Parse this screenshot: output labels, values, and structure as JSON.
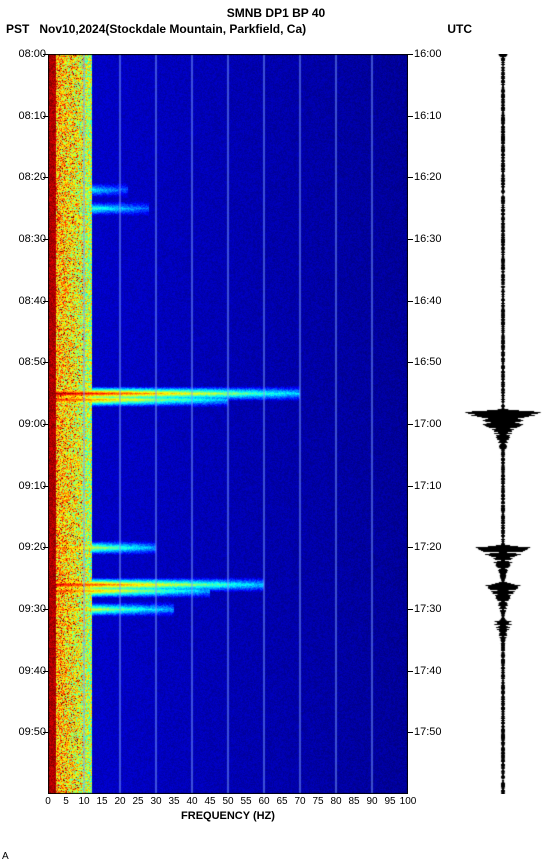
{
  "header": {
    "title": "SMNB DP1 BP 40",
    "tz_left": "PST",
    "date": "Nov10,2024",
    "location": "(Stockdale Mountain, Parkfield, Ca)",
    "tz_right": "UTC"
  },
  "spectrogram": {
    "type": "spectrogram",
    "xlabel": "FREQUENCY (HZ)",
    "xlim": [
      0,
      100
    ],
    "xticks": [
      0,
      5,
      10,
      15,
      20,
      25,
      30,
      35,
      40,
      45,
      50,
      55,
      60,
      65,
      70,
      75,
      80,
      85,
      90,
      95,
      100
    ],
    "left_time_label_prefix": "0",
    "left_ticks": [
      "08:00",
      "08:10",
      "08:20",
      "08:30",
      "08:40",
      "08:50",
      "09:00",
      "09:10",
      "09:20",
      "09:30",
      "09:40",
      "09:50"
    ],
    "right_ticks": [
      "16:00",
      "16:10",
      "16:20",
      "16:30",
      "16:40",
      "16:50",
      "17:00",
      "17:10",
      "17:20",
      "17:30",
      "17:40",
      "17:50"
    ],
    "time_minutes": 120,
    "grid_color": "#7aa0ff",
    "grid_xlines": [
      10,
      20,
      30,
      40,
      50,
      60,
      70,
      80,
      90
    ],
    "colormap": [
      "#00007f",
      "#0000ff",
      "#007fff",
      "#00ffff",
      "#7fff7f",
      "#ffff00",
      "#ff7f00",
      "#ff0000",
      "#7f0000"
    ],
    "background_color": "#0010d6",
    "low_freq_band": {
      "freq_range": [
        0,
        12
      ],
      "intensity_avg": 0.78
    },
    "events": [
      {
        "time_min": 55,
        "freq_end": 70,
        "intensity": 0.95
      },
      {
        "time_min": 56,
        "freq_end": 50,
        "intensity": 0.85
      },
      {
        "time_min": 80,
        "freq_end": 30,
        "intensity": 0.75
      },
      {
        "time_min": 86,
        "freq_end": 60,
        "intensity": 0.9
      },
      {
        "time_min": 87,
        "freq_end": 45,
        "intensity": 0.82
      },
      {
        "time_min": 90,
        "freq_end": 35,
        "intensity": 0.72
      },
      {
        "time_min": 25,
        "freq_end": 28,
        "intensity": 0.55
      },
      {
        "time_min": 22,
        "freq_end": 22,
        "intensity": 0.5
      }
    ]
  },
  "waveform": {
    "type": "seismogram",
    "color": "#000000",
    "bg": "#ffffff",
    "time_minutes": 120,
    "baseline_amp": 0.05,
    "bursts": [
      {
        "time_min": 58,
        "amp": 0.95,
        "dur": 6
      },
      {
        "time_min": 60,
        "amp": 0.5,
        "dur": 4
      },
      {
        "time_min": 80,
        "amp": 0.75,
        "dur": 5
      },
      {
        "time_min": 86,
        "amp": 0.45,
        "dur": 6
      },
      {
        "time_min": 92,
        "amp": 0.25,
        "dur": 6
      },
      {
        "time_min": 0,
        "amp": 0.12,
        "dur": 2
      }
    ]
  },
  "corner_text": "A"
}
